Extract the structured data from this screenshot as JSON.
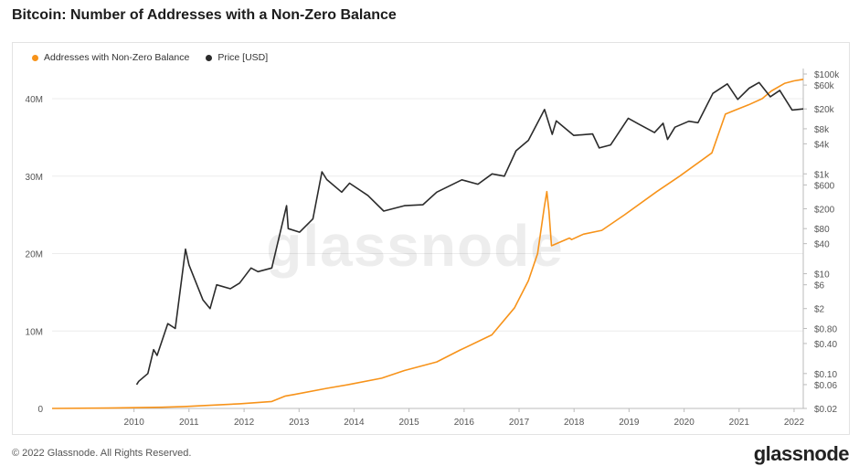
{
  "title": "Bitcoin: Number of Addresses with a Non-Zero Balance",
  "footer": "© 2022 Glassnode. All Rights Reserved.",
  "brand": "glassnode",
  "watermark": "glassnode",
  "colors": {
    "addresses": "#f7931a",
    "price": "#2b2b2b",
    "grid": "#ececec",
    "axis": "#555555"
  },
  "chart_data": {
    "type": "line",
    "title": "Bitcoin: Number of Addresses with a Non-Zero Balance",
    "x_ticks": [
      "2010",
      "2011",
      "2012",
      "2013",
      "2014",
      "2015",
      "2016",
      "2017",
      "2018",
      "2019",
      "2020",
      "2021",
      "2022"
    ],
    "y_left_ticks": [
      "0",
      "10M",
      "20M",
      "30M",
      "40M"
    ],
    "y_left_range": [
      0,
      40000000
    ],
    "y_right_scale": "log",
    "y_right_ticks": [
      "$0.02",
      "$0.06",
      "$0.10",
      "$0.40",
      "$0.80",
      "$2",
      "$6",
      "$10",
      "$40",
      "$80",
      "$200",
      "$600",
      "$1k",
      "$4k",
      "$8k",
      "$20k",
      "$60k",
      "$100k"
    ],
    "legend_position": "top-left",
    "grid": "horizontal",
    "series": [
      {
        "name": "Addresses with Non-Zero Balance",
        "axis": "left",
        "x": [
          "2009-01-03",
          "2010-01-01",
          "2011-01-01",
          "2011-06-01",
          "2012-01-01",
          "2012-06-01",
          "2013-01-01",
          "2013-04-01",
          "2013-06-01",
          "2014-01-01",
          "2014-06-01",
          "2015-01-01",
          "2015-06-01",
          "2016-01-01",
          "2016-06-01",
          "2017-01-01",
          "2017-06-01",
          "2017-09-01",
          "2017-11-01",
          "2017-12-15",
          "2018-01-01",
          "2018-01-15",
          "2018-02-01",
          "2018-06-01",
          "2018-06-15",
          "2018-09-01",
          "2019-01-01",
          "2019-06-01",
          "2020-01-01",
          "2020-06-01",
          "2021-01-01",
          "2021-04-01",
          "2021-06-01",
          "2021-09-01",
          "2021-12-01",
          "2022-02-01",
          "2022-05-01",
          "2022-07-01",
          "2022-08-31"
        ],
        "y": [
          0,
          50000,
          150000,
          250000,
          450000,
          600000,
          900000,
          1600000,
          1800000,
          2600000,
          3100000,
          3900000,
          4900000,
          6000000,
          7500000,
          9500000,
          13000000,
          16500000,
          20000000,
          26000000,
          28000000,
          25500000,
          21000000,
          22000000,
          21800000,
          22500000,
          23000000,
          25000000,
          28000000,
          30000000,
          33000000,
          38000000,
          38500000,
          39200000,
          40000000,
          41000000,
          42000000,
          42300000,
          42500000
        ]
      },
      {
        "name": "Price [USD]",
        "axis": "right",
        "x": [
          "2010-07-18",
          "2010-08-01",
          "2010-10-01",
          "2010-11-08",
          "2010-12-01",
          "2011-02-10",
          "2011-04-01",
          "2011-06-08",
          "2011-07-01",
          "2011-10-01",
          "2011-11-18",
          "2012-01-01",
          "2012-04-01",
          "2012-06-01",
          "2012-08-16",
          "2012-10-01",
          "2013-01-01",
          "2013-04-09",
          "2013-04-20",
          "2013-07-05",
          "2013-10-01",
          "2013-11-30",
          "2014-01-01",
          "2014-04-10",
          "2014-06-01",
          "2014-10-01",
          "2015-01-14",
          "2015-06-01",
          "2015-10-01",
          "2016-01-01",
          "2016-06-16",
          "2016-10-01",
          "2017-01-03",
          "2017-03-25",
          "2017-06-11",
          "2017-09-01",
          "2017-12-17",
          "2018-02-06",
          "2018-03-05",
          "2018-06-29",
          "2018-11-01",
          "2018-12-15",
          "2019-03-01",
          "2019-06-26",
          "2019-09-01",
          "2019-12-17",
          "2020-02-12",
          "2020-03-13",
          "2020-05-01",
          "2020-08-01",
          "2020-10-01",
          "2021-01-08",
          "2021-04-14",
          "2021-06-22",
          "2021-09-06",
          "2021-11-10",
          "2022-01-24",
          "2022-03-28",
          "2022-06-18",
          "2022-08-31"
        ],
        "y": [
          0.06,
          0.07,
          0.1,
          0.3,
          0.23,
          1.0,
          0.8,
          31,
          15,
          3,
          2,
          6,
          5,
          6.5,
          13,
          11,
          13,
          230,
          80,
          68,
          125,
          1100,
          770,
          430,
          650,
          370,
          180,
          230,
          240,
          430,
          760,
          620,
          1000,
          900,
          2900,
          4700,
          19500,
          6200,
          11500,
          5900,
          6300,
          3300,
          3800,
          13000,
          10000,
          6700,
          10300,
          4900,
          8600,
          11300,
          10600,
          41000,
          63500,
          31000,
          52000,
          67500,
          35000,
          47000,
          19000,
          20000
        ]
      }
    ]
  }
}
